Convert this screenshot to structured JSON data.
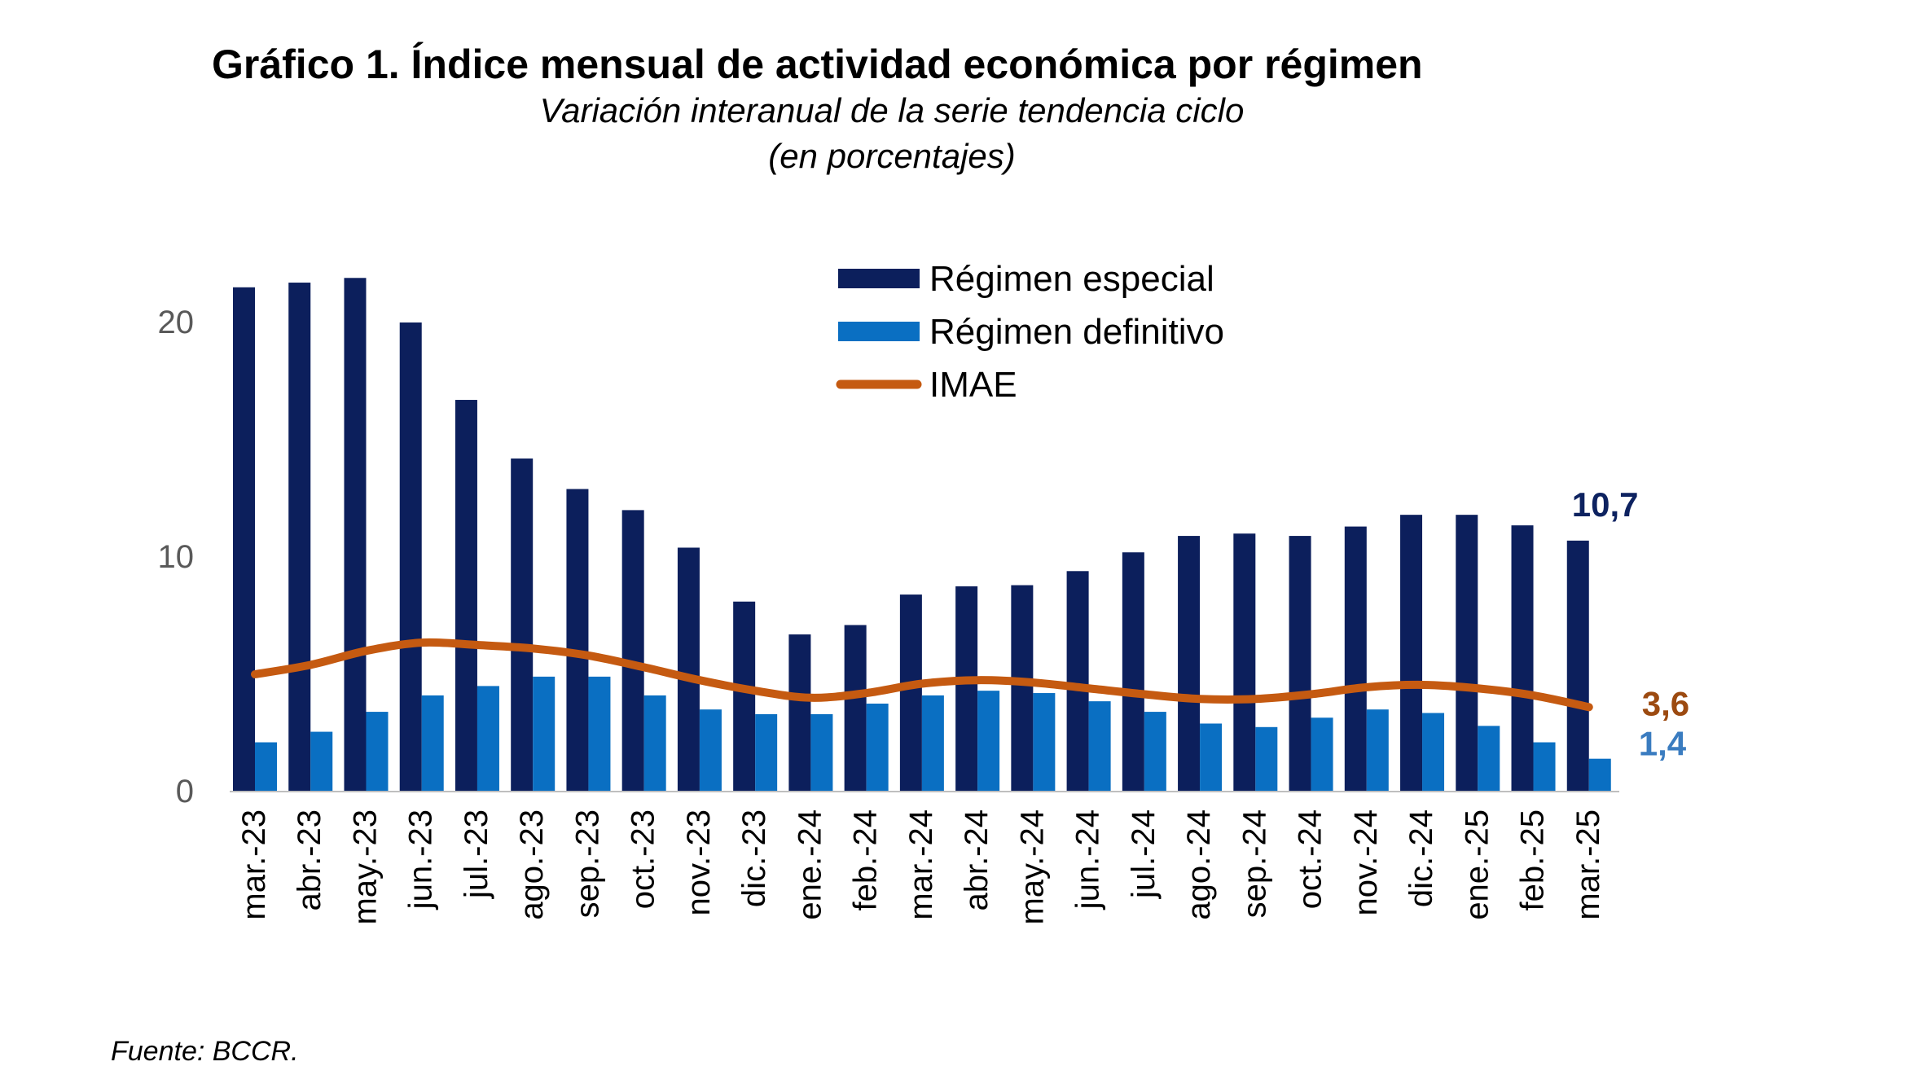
{
  "chart_data": {
    "type": "bar",
    "title": "Gráfico 1. Índice mensual de actividad económica por régimen",
    "subtitle": "Variación interanual de la serie tendencia ciclo",
    "subtitle2": "(en porcentajes)",
    "source": "Fuente:  BCCR.",
    "xlabel": "",
    "ylabel": "",
    "ylim": [
      0,
      23
    ],
    "yticks": [
      "0",
      "10",
      "20"
    ],
    "grid": false,
    "legend_placement": "top-center",
    "categories": [
      "mar.-23",
      "abr.-23",
      "may.-23",
      "jun.-23",
      "jul.-23",
      "ago.-23",
      "sep.-23",
      "oct.-23",
      "nov.-23",
      "dic.-23",
      "ene.-24",
      "feb.-24",
      "mar.-24",
      "abr.-24",
      "may.-24",
      "jun.-24",
      "jul.-24",
      "ago.-24",
      "sep.-24",
      "oct.-24",
      "nov.-24",
      "dic.-24",
      "ene.-25",
      "feb.-25",
      "mar.-25"
    ],
    "series": [
      {
        "name": "Régimen especial",
        "type": "bar",
        "color": "#0c1f5c",
        "values": [
          21.5,
          21.7,
          21.9,
          20.0,
          16.7,
          14.2,
          12.9,
          12.0,
          10.4,
          8.1,
          6.7,
          7.1,
          8.4,
          8.75,
          8.8,
          9.4,
          10.2,
          10.9,
          11.0,
          10.9,
          11.3,
          11.8,
          11.8,
          11.35,
          10.7
        ],
        "end_label": "10,7",
        "label_color": "#0d2260"
      },
      {
        "name": "Régimen definitivo",
        "type": "bar",
        "color": "#0a6fc2",
        "values": [
          2.1,
          2.55,
          3.4,
          4.1,
          4.5,
          4.9,
          4.9,
          4.1,
          3.5,
          3.3,
          3.3,
          3.75,
          4.1,
          4.3,
          4.2,
          3.85,
          3.4,
          2.9,
          2.75,
          3.15,
          3.5,
          3.35,
          2.8,
          2.1,
          1.4
        ],
        "end_label": "1,4",
        "label_color": "#3a7cc0"
      },
      {
        "name": "IMAE",
        "type": "line",
        "color": "#c55a11",
        "values": [
          5.0,
          5.4,
          6.0,
          6.35,
          6.25,
          6.1,
          5.8,
          5.3,
          4.75,
          4.3,
          4.0,
          4.2,
          4.6,
          4.75,
          4.65,
          4.4,
          4.15,
          3.95,
          3.95,
          4.15,
          4.45,
          4.55,
          4.4,
          4.1,
          3.6
        ],
        "end_label": "3,6",
        "label_color": "#9c4a10"
      }
    ]
  }
}
